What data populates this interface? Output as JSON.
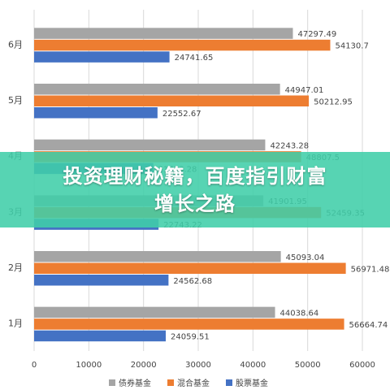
{
  "chart_data": {
    "type": "bar",
    "orientation": "horizontal",
    "categories": [
      "1月",
      "2月",
      "3月",
      "4月",
      "5月",
      "6月"
    ],
    "series": [
      {
        "name": "债券基金",
        "color": "#a5a5a5",
        "values": [
          44038.64,
          45093.04,
          41901.95,
          42243.28,
          44947.01,
          47297.49
        ]
      },
      {
        "name": "混合基金",
        "color": "#ed7d31",
        "values": [
          56664.74,
          56971.48,
          52459.35,
          48807.5,
          50212.95,
          54130.7
        ]
      },
      {
        "name": "股票基金",
        "color": "#4472c4",
        "values": [
          24059.51,
          24562.68,
          22743.22,
          21783.28,
          22552.67,
          24741.65
        ]
      }
    ],
    "data_labels": [
      [
        "44038.64",
        "45093.04",
        "41901.95",
        "42243.28",
        "44947.01",
        "47297.49"
      ],
      [
        "56664.74",
        "56971.48",
        "52459.35",
        "48807.5",
        "50212.95",
        "54130.7"
      ],
      [
        "24059.51",
        "24562.68",
        "22743.22",
        "21783.28",
        "22552.67",
        "24741.65"
      ]
    ],
    "xlim": [
      0,
      60000
    ],
    "xticks": [
      0,
      10000,
      20000,
      30000,
      40000,
      50000,
      60000
    ],
    "xtick_labels": [
      "0",
      "10000",
      "20000",
      "30000",
      "40000",
      "50000",
      "60000"
    ],
    "grid": true,
    "legend": "bottom"
  },
  "banner": {
    "line1": "投资理财秘籍，百度指引财富",
    "line2": "增长之路"
  }
}
